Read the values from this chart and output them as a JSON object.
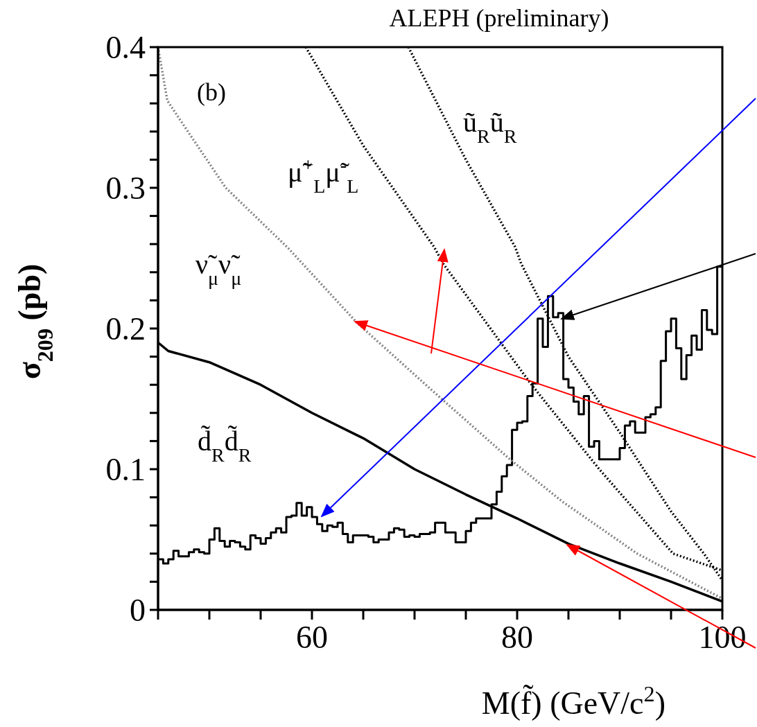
{
  "chart_data": {
    "type": "line",
    "title": "ALEPH (preliminary)",
    "xlabel": "M(f̃) (GeV/c$^{2}$)",
    "ylabel": "σ$_{209}$ (pb)",
    "xlim": [
      45,
      100
    ],
    "xticks": [
      {
        "value": 45,
        "label": null
      },
      {
        "value": 50,
        "label": null
      },
      {
        "value": 55,
        "label": null
      },
      60,
      {
        "value": 65,
        "label": null
      },
      {
        "value": 70,
        "label": null
      },
      {
        "value": 75,
        "label": null
      },
      80,
      {
        "value": 85,
        "label": null
      },
      {
        "value": 90,
        "label": null
      },
      {
        "value": 95,
        "label": null
      },
      100
    ],
    "ylim": [
      0,
      0.4
    ],
    "yticks": [
      0,
      {
        "value": 0.02,
        "label": null
      },
      {
        "value": 0.04,
        "label": null
      },
      {
        "value": 0.06,
        "label": null
      },
      {
        "value": 0.08,
        "label": null
      },
      0.1,
      {
        "value": 0.12,
        "label": null
      },
      {
        "value": 0.14,
        "label": null
      },
      {
        "value": 0.16,
        "label": null
      },
      {
        "value": 0.18,
        "label": null
      },
      0.2,
      {
        "value": 0.22,
        "label": null
      },
      {
        "value": 0.24,
        "label": null
      },
      {
        "value": 0.26,
        "label": null
      },
      {
        "value": 0.28,
        "label": null
      },
      0.3,
      {
        "value": 0.32,
        "label": null
      },
      {
        "value": 0.34,
        "label": null
      },
      {
        "value": 0.36,
        "label": null
      },
      {
        "value": 0.38,
        "label": null
      },
      0.4
    ],
    "marker": "none",
    "annotations": [
      "(b)"
    ],
    "series": [
      {
        "type": "histogram",
        "color": "#000000",
        "line_style": "solid",
        "bins": [
          45,
          45.5,
          46,
          46.5,
          47,
          47.5,
          48,
          48.5,
          49,
          49.5,
          50,
          50.5,
          51,
          51.5,
          52,
          52.5,
          53,
          53.5,
          54,
          54.5,
          55,
          55.5,
          56,
          56.5,
          57,
          57.5,
          58,
          58.5,
          59,
          59.5,
          60,
          60.5,
          61,
          61.5,
          62,
          62.5,
          63,
          63.5,
          64,
          64.5,
          65,
          65.5,
          66,
          66.5,
          67,
          67.5,
          68,
          68.5,
          69,
          69.5,
          70,
          70.5,
          71,
          71.5,
          72,
          72.5,
          73,
          73.5,
          74,
          74.5,
          75,
          75.5,
          76,
          76.5,
          77,
          77.5,
          78,
          78.5,
          79,
          79.5,
          80,
          80.5,
          81,
          81.5,
          82,
          82.5,
          83,
          83.5,
          84,
          84.5,
          85,
          85.5,
          86,
          86.5,
          87,
          87.5,
          88,
          88.5,
          89,
          89.5,
          90,
          90.5,
          91,
          91.5,
          92,
          92.5,
          93,
          93.5,
          94,
          94.5,
          95,
          95.5,
          96,
          96.5,
          97,
          97.5,
          98,
          98.5,
          99,
          99.5,
          100
        ],
        "values": [
          0.036,
          0.033,
          0.036,
          0.042,
          0.038,
          0.038,
          0.041,
          0.043,
          0.041,
          0.04,
          0.05,
          0.058,
          0.049,
          0.045,
          0.049,
          0.048,
          0.045,
          0.043,
          0.053,
          0.051,
          0.047,
          0.051,
          0.055,
          0.058,
          0.055,
          0.066,
          0.067,
          0.076,
          0.067,
          0.073,
          0.066,
          0.061,
          0.056,
          0.06,
          0.059,
          0.062,
          0.054,
          0.048,
          0.053,
          0.053,
          0.053,
          0.052,
          0.048,
          0.05,
          0.05,
          0.055,
          0.058,
          0.057,
          0.052,
          0.053,
          0.052,
          0.054,
          0.054,
          0.055,
          0.062,
          0.062,
          0.055,
          0.055,
          0.048,
          0.048,
          0.056,
          0.062,
          0.065,
          0.065,
          0.065,
          0.075,
          0.084,
          0.095,
          0.103,
          0.128,
          0.133,
          0.134,
          0.152,
          0.161,
          0.207,
          0.187,
          0.223,
          0.208,
          0.211,
          0.164,
          0.158,
          0.148,
          0.139,
          0.152,
          0.116,
          0.12,
          0.107,
          0.107,
          0.107,
          0.107,
          0.115,
          0.131,
          0.134,
          0.126,
          0.126,
          0.137,
          0.139,
          0.144,
          0.177,
          0.198,
          0.207,
          0.186,
          0.164,
          0.181,
          0.195,
          0.185,
          0.213,
          0.199,
          0.196,
          0.244
        ]
      },
      {
        "type": "line",
        "name": "d̃$_{R}$d̃$_{R}$",
        "color": "#000000",
        "line_style": "solid",
        "x": [
          45,
          46,
          50,
          55,
          60,
          65,
          70,
          75,
          80,
          85,
          90,
          95,
          100
        ],
        "values": [
          0.19,
          0.184,
          0.176,
          0.16,
          0.14,
          0.122,
          0.1,
          0.082,
          0.065,
          0.047,
          0.033,
          0.02,
          0.006
        ]
      },
      {
        "type": "line",
        "name": "ν̃$_{μ}$ν̃$_{μ}$",
        "color": "#808080",
        "line_style": "dotted",
        "x": [
          45,
          45.9,
          48,
          51.6,
          57.7,
          64.4,
          71.4,
          79.3,
          84.4,
          91.7,
          100
        ],
        "values": [
          0.4,
          0.362,
          0.339,
          0.3,
          0.257,
          0.204,
          0.158,
          0.107,
          0.077,
          0.04,
          0.008
        ]
      },
      {
        "type": "line",
        "name": "μ̃$^{+}$$_{L}$μ̃$^{-}$$_{L}$",
        "color": "#000000",
        "line_style": "dotted",
        "x": [
          59.4,
          65,
          71.9,
          72.8,
          81.3,
          88,
          95.2,
          100
        ],
        "values": [
          0.4,
          0.33,
          0.258,
          0.246,
          0.161,
          0.1,
          0.04,
          0.028
        ]
      },
      {
        "type": "line",
        "name": "ũ$_{R}$ũ$_{R}$",
        "color": "#000000",
        "line_style": "dotted",
        "x": [
          69.4,
          75,
          79.8,
          80.4,
          85,
          90.1,
          95,
          98.2,
          100
        ],
        "values": [
          0.4,
          0.32,
          0.258,
          0.246,
          0.18,
          0.125,
          0.07,
          0.04,
          0.021
        ]
      }
    ]
  }
}
